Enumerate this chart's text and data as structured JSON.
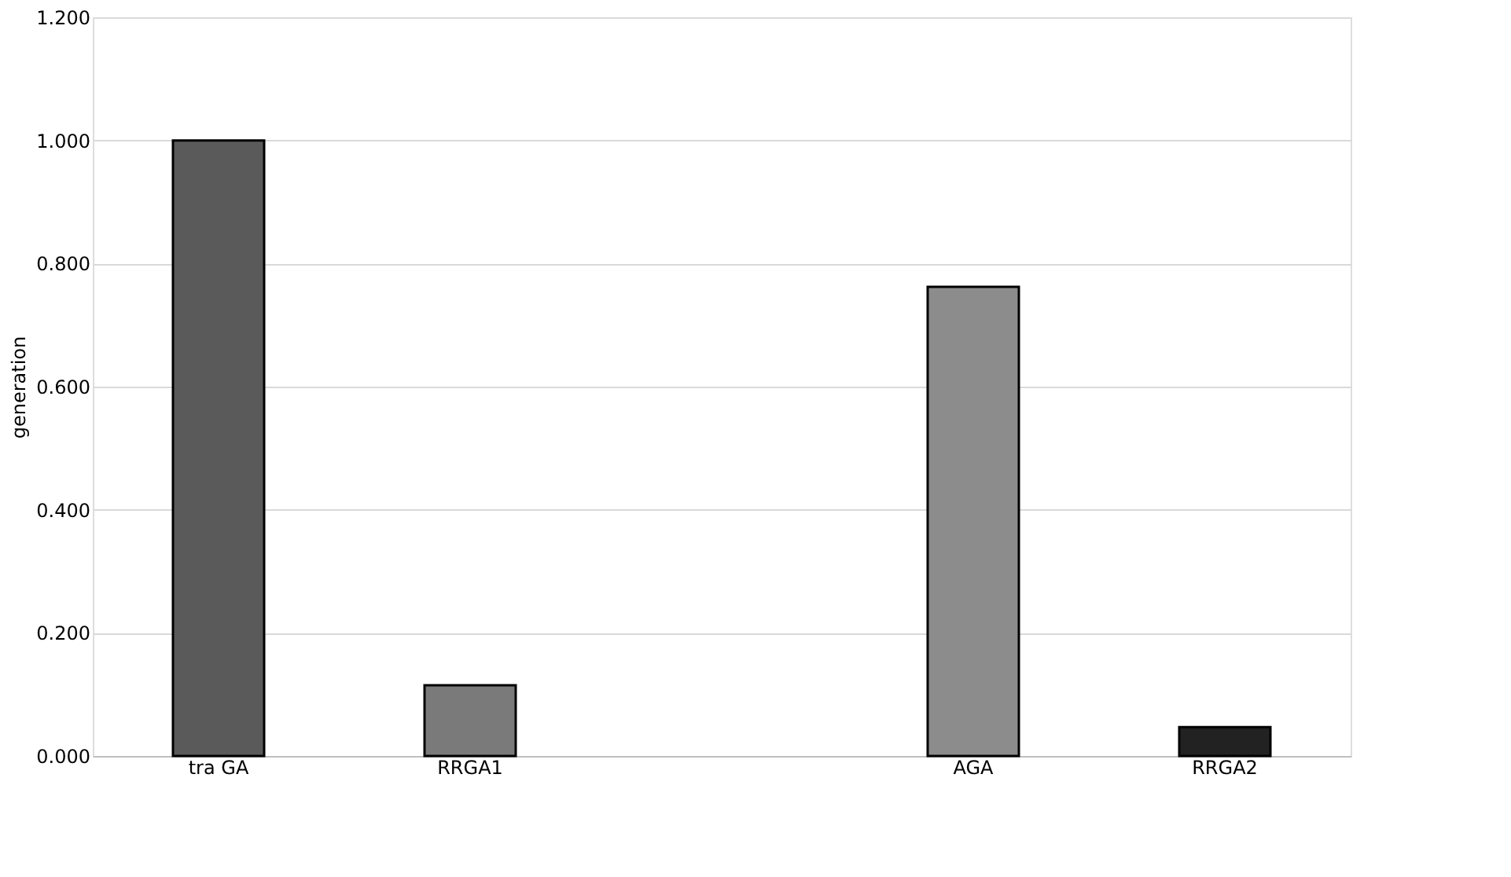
{
  "chart_data": {
    "type": "bar",
    "ylabel": "generation",
    "categories": [
      "tra GA",
      "RRGA1",
      null,
      "AGA",
      "RRGA2"
    ],
    "values": [
      1.0,
      0.115,
      null,
      0.762,
      0.047
    ],
    "colors": [
      "#5a5a5a",
      "#7a7a7a",
      "#ffffff",
      "#8c8c8c",
      "#222222"
    ],
    "ylim": [
      0,
      1.2
    ],
    "yticks": [
      {
        "value": 0,
        "label": "0.000"
      },
      {
        "value": 0.2,
        "label": "0.200"
      },
      {
        "value": 0.4,
        "label": "0.400"
      },
      {
        "value": 0.6,
        "label": "0.600"
      },
      {
        "value": 0.8,
        "label": "0.800"
      },
      {
        "value": 1.0,
        "label": "1.000"
      },
      {
        "value": 1.2,
        "label": "1.200"
      }
    ],
    "grid": "y"
  }
}
